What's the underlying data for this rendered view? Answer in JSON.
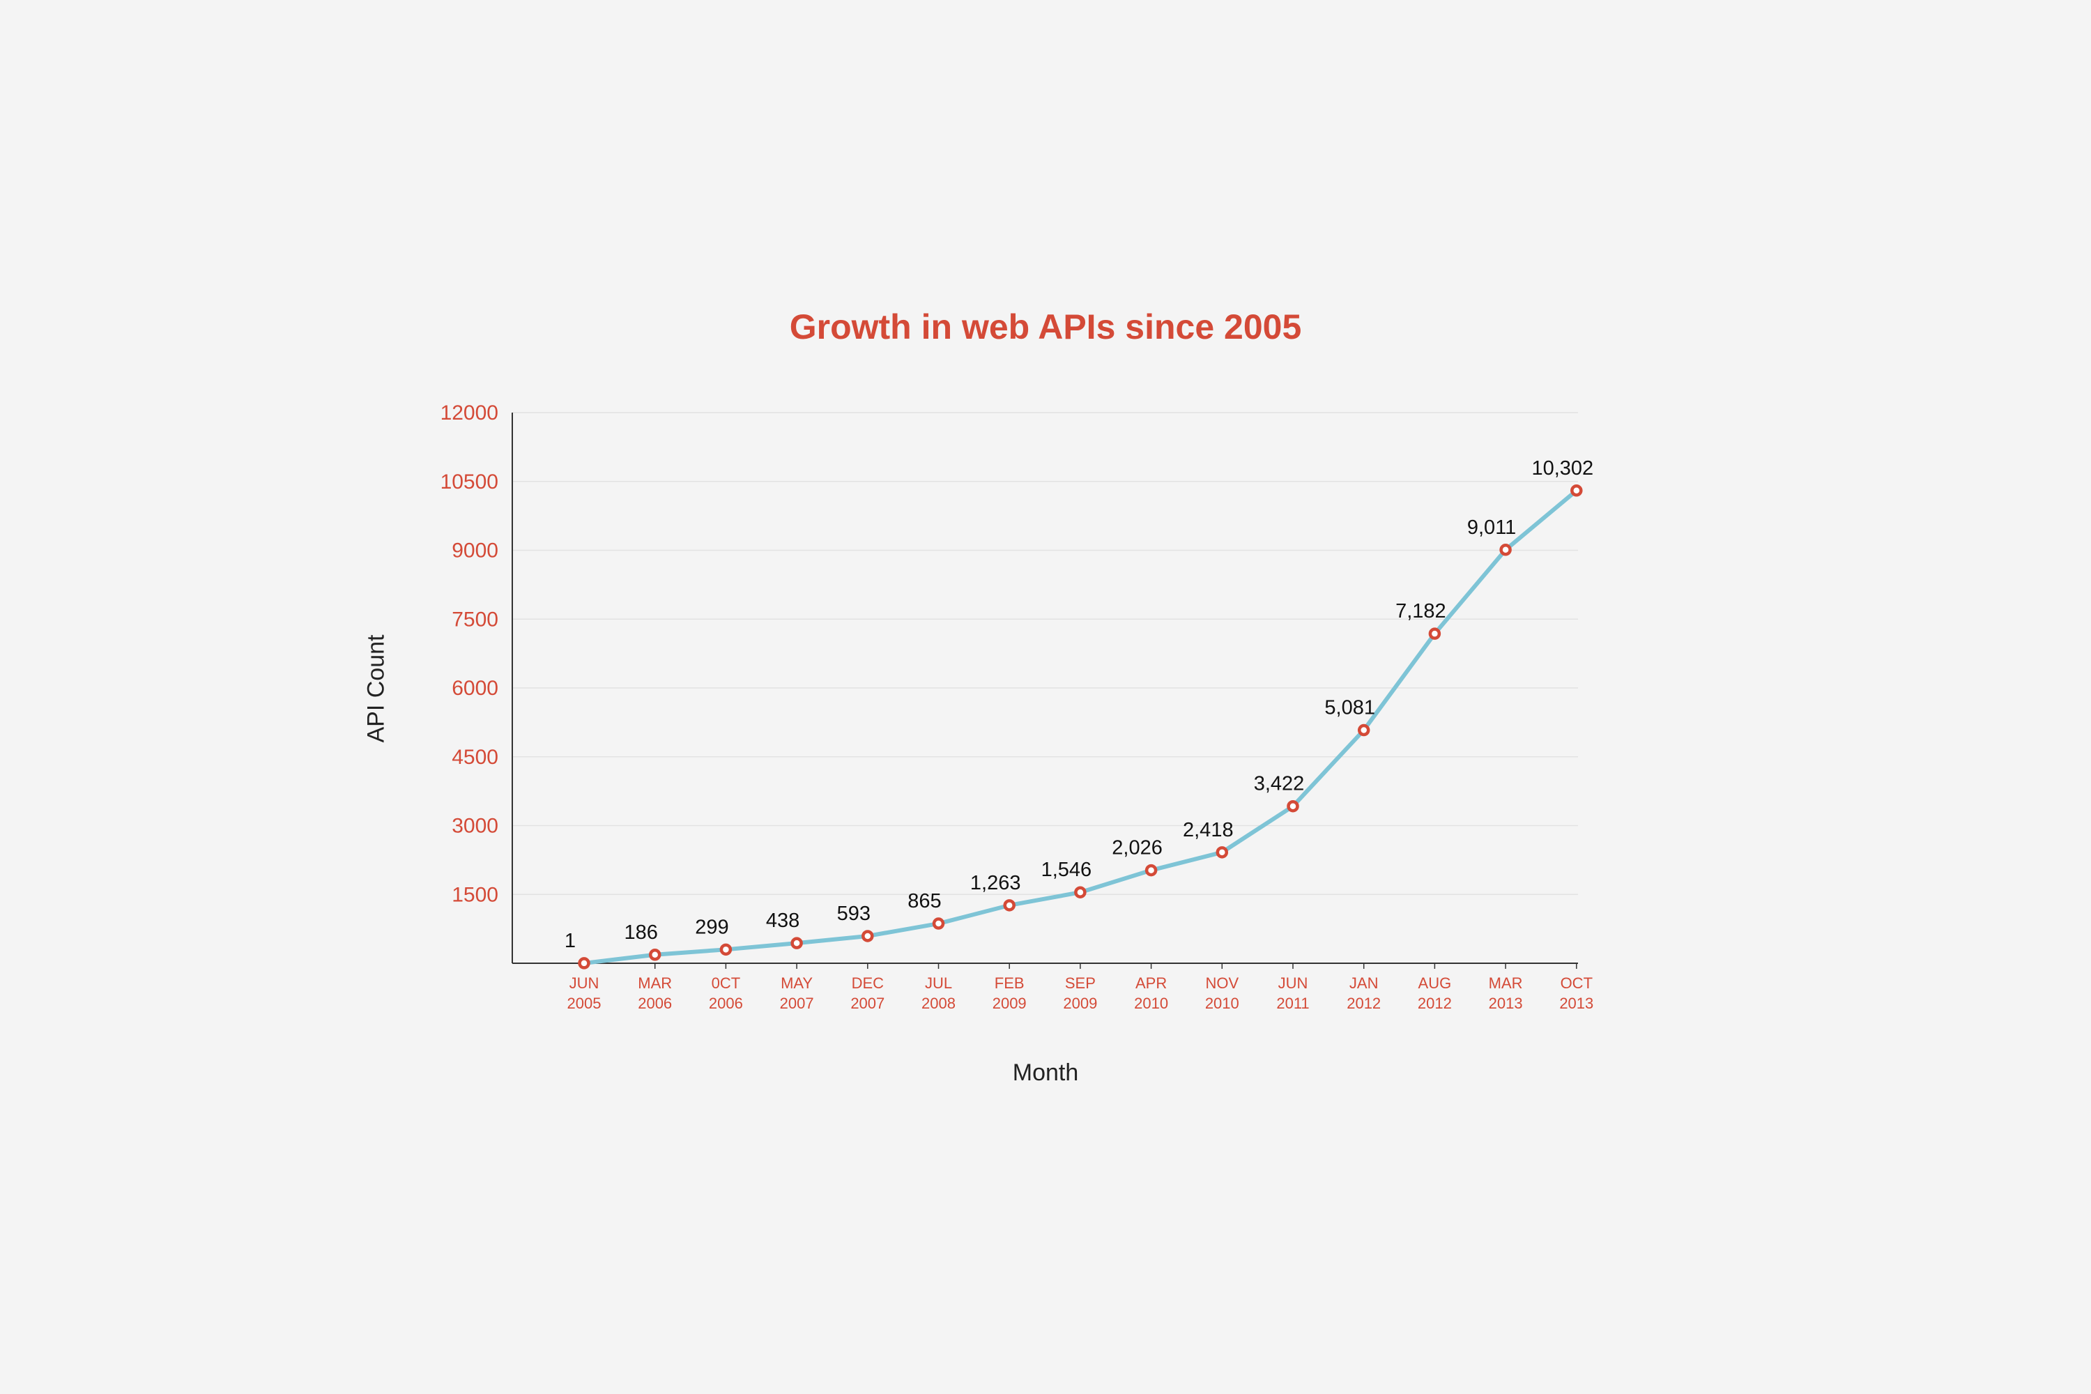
{
  "chart_data": {
    "type": "line",
    "title": "Growth in web APIs since 2005",
    "xlabel": "Month",
    "ylabel": "API Count",
    "ylim": [
      0,
      12000
    ],
    "yticks": [
      1500,
      3000,
      4500,
      6000,
      7500,
      9000,
      10500,
      12000
    ],
    "grid": true,
    "legend": "none",
    "categories": [
      [
        "JUN",
        "2005"
      ],
      [
        "MAR",
        "2006"
      ],
      [
        "0CT",
        "2006"
      ],
      [
        "MAY",
        "2007"
      ],
      [
        "DEC",
        "2007"
      ],
      [
        "JUL",
        "2008"
      ],
      [
        "FEB",
        "2009"
      ],
      [
        "SEP",
        "2009"
      ],
      [
        "APR",
        "2010"
      ],
      [
        "NOV",
        "2010"
      ],
      [
        "JUN",
        "2011"
      ],
      [
        "JAN",
        "2012"
      ],
      [
        "AUG",
        "2012"
      ],
      [
        "MAR",
        "2013"
      ],
      [
        "OCT",
        "2013"
      ]
    ],
    "values": [
      1,
      186,
      299,
      438,
      593,
      865,
      1263,
      1546,
      2026,
      2418,
      3422,
      5081,
      7182,
      9011,
      10302
    ],
    "value_labels": [
      "1",
      "186",
      "299",
      "438",
      "593",
      "865",
      "1,263",
      "1,546",
      "2,026",
      "2,418",
      "3,422",
      "5,081",
      "7,182",
      "9,011",
      "10,302"
    ],
    "colors": {
      "line": "#7ec4d6",
      "marker": "#d44a37",
      "accent": "#d44a37",
      "grid": "#e2e2e2",
      "axis": "#333333"
    }
  }
}
